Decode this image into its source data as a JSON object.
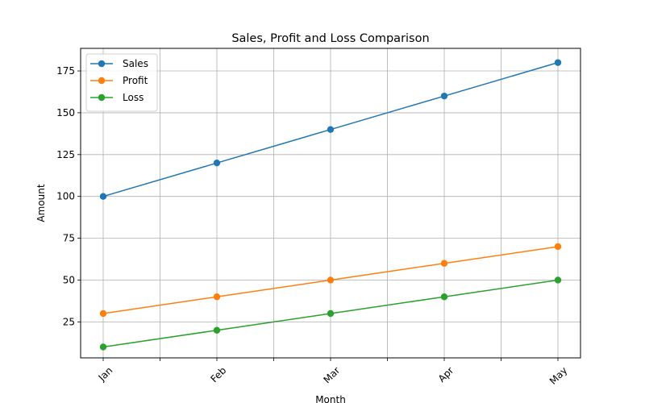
{
  "chart_data": {
    "type": "line",
    "title": "Sales, Profit and Loss Comparison",
    "xlabel": "Month",
    "ylabel": "Amount",
    "categories": [
      "Jan",
      "Feb",
      "Mar",
      "Apr",
      "May"
    ],
    "y_ticks": [
      25,
      50,
      75,
      100,
      125,
      150,
      175
    ],
    "ylim": [
      3.5,
      188.5
    ],
    "grid": true,
    "legend_position": "top-left",
    "x_tick_rotation": 45,
    "series": [
      {
        "name": "Sales",
        "values": [
          100,
          120,
          140,
          160,
          180
        ],
        "color": "#1f77b4",
        "marker": "circle"
      },
      {
        "name": "Profit",
        "values": [
          30,
          40,
          50,
          60,
          70
        ],
        "color": "#ff7f0e",
        "marker": "circle"
      },
      {
        "name": "Loss",
        "values": [
          10,
          20,
          30,
          40,
          50
        ],
        "color": "#2ca02c",
        "marker": "circle"
      }
    ]
  }
}
